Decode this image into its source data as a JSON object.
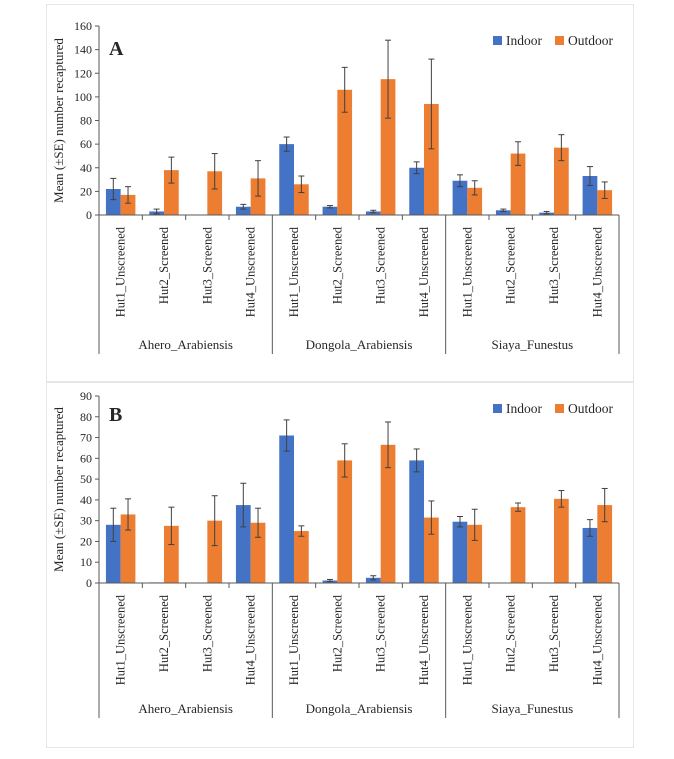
{
  "colors": {
    "indoor": "#4472C4",
    "outdoor": "#ED7D31",
    "axis": "#595959",
    "error": "#404040"
  },
  "chart_data": [
    {
      "type": "bar",
      "panel_label": "A",
      "ylabel": "Mean (±SE) number recaptured",
      "ylim": [
        0,
        160
      ],
      "yticks": [
        0,
        20,
        40,
        60,
        80,
        100,
        120,
        140,
        160
      ],
      "legend": {
        "placement": "top-right",
        "entries": [
          "Indoor",
          "Outdoor"
        ]
      },
      "categories": [
        "Hut1_Unscreened",
        "Hut2_Screened",
        "Hut3_Screened",
        "Hut4_Unscreened",
        "Hut1_Unscreened",
        "Hut2_Screened",
        "Hut3_Screened",
        "Hut4_Unscreened",
        "Hut1_Unscreened",
        "Hut2_Screened",
        "Hut3_Screened",
        "Hut4_Unscreened"
      ],
      "groups": [
        "Ahero_Arabiensis",
        "Dongola_Arabiensis",
        "Siaya_Funestus"
      ],
      "series": [
        {
          "name": "Indoor",
          "values": [
            22,
            3,
            0,
            7,
            60,
            7,
            3,
            40,
            29,
            4,
            2,
            33
          ],
          "errors": [
            9,
            2,
            0,
            2,
            6,
            1,
            1,
            5,
            5,
            1,
            1,
            8
          ]
        },
        {
          "name": "Outdoor",
          "values": [
            17,
            38,
            37,
            31,
            26,
            106,
            115,
            94,
            23,
            52,
            57,
            21
          ],
          "errors": [
            7,
            11,
            15,
            15,
            7,
            19,
            33,
            38,
            6,
            10,
            11,
            7
          ]
        }
      ]
    },
    {
      "type": "bar",
      "panel_label": "B",
      "ylabel": "Mean (±SE) number recaptured",
      "ylim": [
        0,
        90
      ],
      "yticks": [
        0,
        10,
        20,
        30,
        40,
        50,
        60,
        70,
        80,
        90
      ],
      "legend": {
        "placement": "top-right",
        "entries": [
          "Indoor",
          "Outdoor"
        ]
      },
      "categories": [
        "Hut1_Unscreened",
        "Hut2_Screened",
        "Hut3_Screened",
        "Hut4_Unscreened",
        "Hut1_Unscreened",
        "Hut2_Screened",
        "Hut3_Screened",
        "Hut4_Unscreened",
        "Hut1_Unscreened",
        "Hut2_Screened",
        "Hut3_Screened",
        "Hut4_Unscreened"
      ],
      "groups": [
        "Ahero_Arabiensis",
        "Dongola_Arabiensis",
        "Siaya_Funestus"
      ],
      "series": [
        {
          "name": "Indoor",
          "values": [
            28,
            0.3,
            0,
            37.5,
            71,
            1.2,
            2.5,
            59,
            29.5,
            0,
            0,
            26.5
          ],
          "errors": [
            8,
            0,
            0,
            10.5,
            7.5,
            0.5,
            1,
            5.5,
            2.5,
            0,
            0,
            4
          ]
        },
        {
          "name": "Outdoor",
          "values": [
            33,
            27.5,
            30,
            29,
            25,
            59,
            66.5,
            31.5,
            28,
            36.5,
            40.5,
            37.5
          ],
          "errors": [
            7.5,
            9,
            12,
            7,
            2.5,
            8,
            11,
            8,
            7.5,
            2,
            4,
            8
          ]
        }
      ]
    }
  ]
}
